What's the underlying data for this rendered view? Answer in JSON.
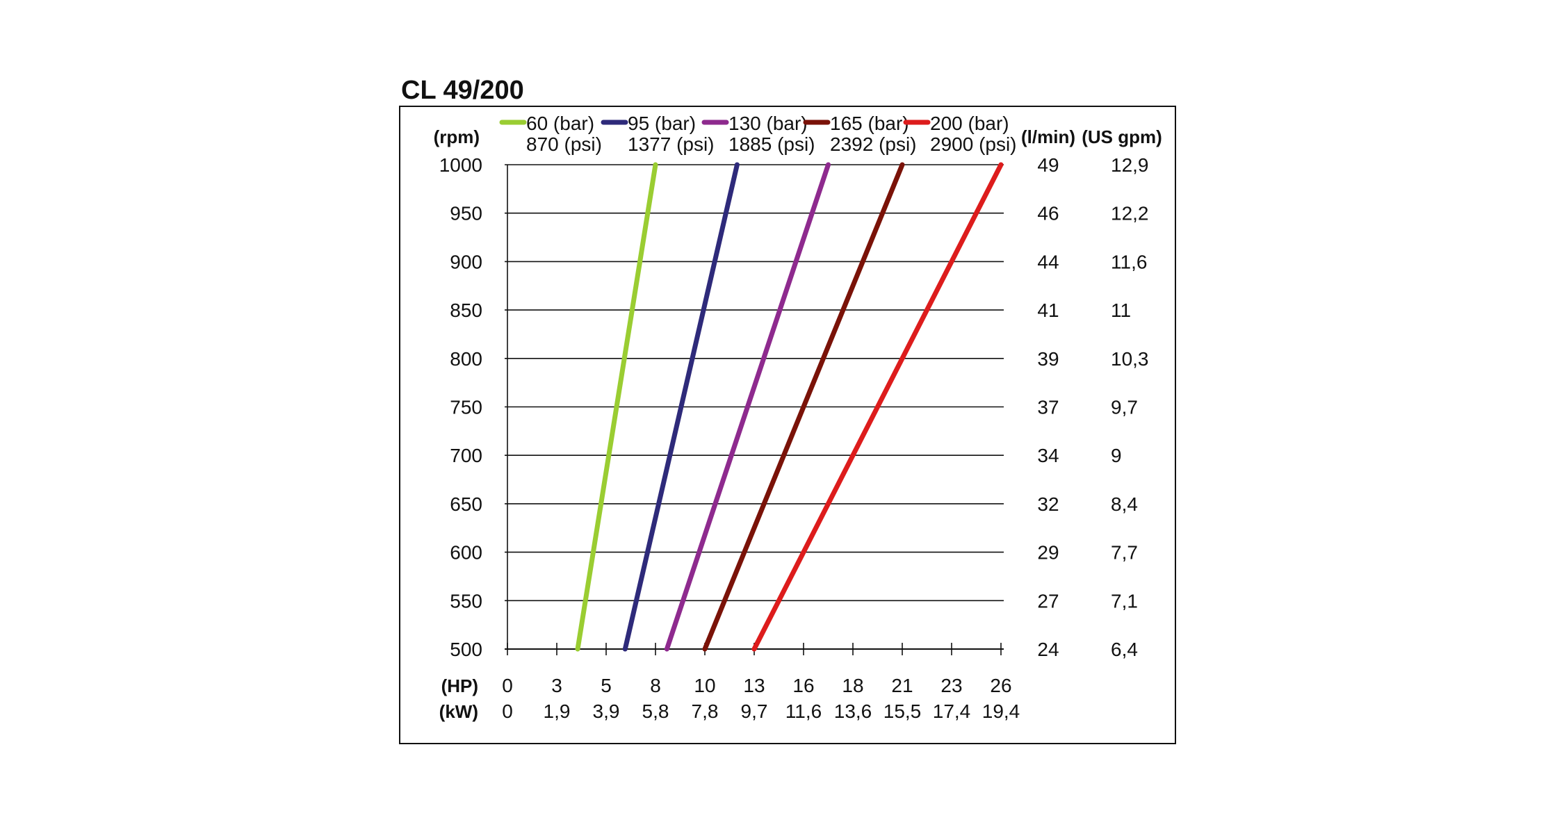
{
  "chart_data": {
    "type": "line",
    "title": "CL 49/200",
    "ylabel": "(rpm)",
    "y_ticks": [
      "1000",
      "950",
      "900",
      "850",
      "800",
      "750",
      "700",
      "650",
      "600",
      "550",
      "500"
    ],
    "y_tick_values": [
      1000,
      950,
      900,
      850,
      800,
      750,
      700,
      650,
      600,
      550,
      500
    ],
    "ylim": [
      500,
      1000
    ],
    "right_axes": [
      {
        "label": "(l/min)",
        "ticks": [
          "49",
          "46",
          "44",
          "41",
          "39",
          "37",
          "34",
          "32",
          "29",
          "27",
          "24"
        ]
      },
      {
        "label": "(US gpm)",
        "ticks": [
          "12,9",
          "12,2",
          "11,6",
          "11",
          "10,3",
          "9,7",
          "9",
          "8,4",
          "7,7",
          "7,1",
          "6,4"
        ]
      }
    ],
    "x_axes": [
      {
        "label": "(HP)",
        "ticks": [
          "0",
          "3",
          "5",
          "8",
          "10",
          "13",
          "16",
          "18",
          "21",
          "23",
          "26"
        ]
      },
      {
        "label": "(kW)",
        "ticks": [
          "0",
          "1,9",
          "3,9",
          "5,8",
          "7,8",
          "9,7",
          "11,6",
          "13,6",
          "15,5",
          "17,4",
          "19,4"
        ]
      }
    ],
    "x_tick_values": [
      0,
      2.6,
      5.2,
      7.8,
      10.4,
      13,
      15.6,
      18.2,
      20.8,
      23.4,
      26
    ],
    "xlim": [
      0,
      26
    ],
    "grid": true,
    "legend_position": "top",
    "series": [
      {
        "name": "60 (bar)",
        "name2": "870 (psi)",
        "color": "#9acd32",
        "x": [
          3.7,
          7.8
        ],
        "y": [
          500,
          1000
        ]
      },
      {
        "name": "95 (bar)",
        "name2": "1377 (psi)",
        "color": "#2e2a7a",
        "x": [
          6.2,
          12.1
        ],
        "y": [
          500,
          1000
        ]
      },
      {
        "name": "130 (bar)",
        "name2": "1885 (psi)",
        "color": "#8e2a8e",
        "x": [
          8.4,
          16.9
        ],
        "y": [
          500,
          1000
        ]
      },
      {
        "name": "165 (bar)",
        "name2": "2392 (psi)",
        "color": "#7a1208",
        "x": [
          10.4,
          20.8
        ],
        "y": [
          500,
          1000
        ]
      },
      {
        "name": "200 (bar)",
        "name2": "2900 (psi)",
        "color": "#dd1c1c",
        "x": [
          13.0,
          26.0
        ],
        "y": [
          500,
          1000
        ]
      }
    ]
  }
}
